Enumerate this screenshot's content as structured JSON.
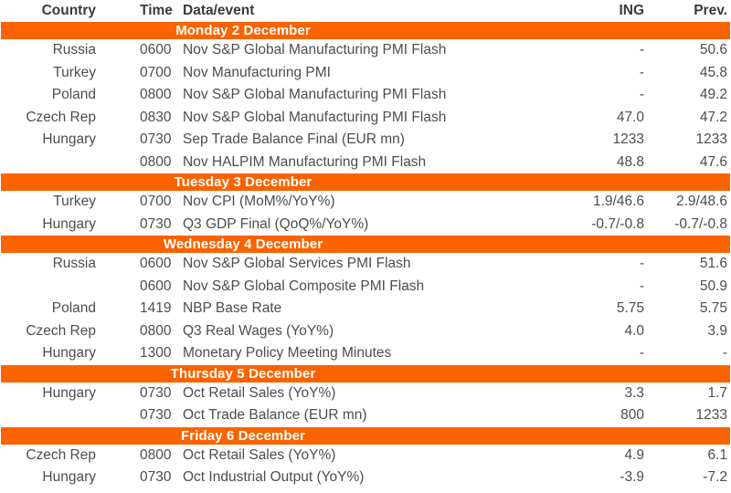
{
  "accent_color": "#fa6300",
  "text_color": "#4d4d50",
  "table": {
    "columns": {
      "country": "Country",
      "time": "Time",
      "event": "Data/event",
      "ing": "ING",
      "prev": "Prev."
    },
    "sections": [
      {
        "title": "Monday 2 December",
        "rows": [
          {
            "country": "Russia",
            "time": "0600",
            "event": "Nov S&P Global Manufacturing PMI Flash",
            "ing": "-",
            "prev": "50.6"
          },
          {
            "country": "Turkey",
            "time": "0700",
            "event": "Nov Manufacturing PMI",
            "ing": "-",
            "prev": "45.8"
          },
          {
            "country": "Poland",
            "time": "0800",
            "event": "Nov S&P Global Manufacturing PMI Flash",
            "ing": "-",
            "prev": "49.2"
          },
          {
            "country": "Czech Rep",
            "time": "0830",
            "event": "Nov S&P Global Manufacturing PMI Flash",
            "ing": "47.0",
            "prev": "47.2"
          },
          {
            "country": "Hungary",
            "time": "0730",
            "event": "Sep Trade Balance Final (EUR mn)",
            "ing": "1233",
            "prev": "1233"
          },
          {
            "country": "",
            "time": "0800",
            "event": "Nov HALPIM Manufacturing PMI Flash",
            "ing": "48.8",
            "prev": "47.6"
          }
        ]
      },
      {
        "title": "Tuesday 3 December",
        "rows": [
          {
            "country": "Turkey",
            "time": "0700",
            "event": "Nov CPI (MoM%/YoY%)",
            "ing": "1.9/46.6",
            "prev": "2.9/48.6"
          },
          {
            "country": "Hungary",
            "time": "0730",
            "event": "Q3 GDP Final (QoQ%/YoY%)",
            "ing": "-0.7/-0.8",
            "prev": "-0.7/-0.8"
          }
        ]
      },
      {
        "title": "Wednesday 4 December",
        "rows": [
          {
            "country": "Russia",
            "time": "0600",
            "event": "Nov S&P Global Services PMI Flash",
            "ing": "-",
            "prev": "51.6"
          },
          {
            "country": "",
            "time": "0600",
            "event": "Nov S&P Global Composite PMI Flash",
            "ing": "-",
            "prev": "50.9"
          },
          {
            "country": "Poland",
            "time": "1419",
            "event": "NBP Base Rate",
            "ing": "5.75",
            "prev": "5.75"
          },
          {
            "country": "Czech Rep",
            "time": "0800",
            "event": "Q3 Real Wages (YoY%)",
            "ing": "4.0",
            "prev": "3.9"
          },
          {
            "country": "Hungary",
            "time": "1300",
            "event": "Monetary Policy Meeting Minutes",
            "ing": "-",
            "prev": "-"
          }
        ]
      },
      {
        "title": "Thursday 5 December",
        "rows": [
          {
            "country": "Hungary",
            "time": "0730",
            "event": "Oct Retail Sales (YoY%)",
            "ing": "3.3",
            "prev": "1.7"
          },
          {
            "country": "",
            "time": "0730",
            "event": "Oct Trade Balance (EUR mn)",
            "ing": "800",
            "prev": "1233"
          }
        ]
      },
      {
        "title": "Friday 6 December",
        "rows": [
          {
            "country": "Czech Rep",
            "time": "0800",
            "event": "Oct Retail Sales (YoY%)",
            "ing": "4.9",
            "prev": "6.1"
          },
          {
            "country": "Hungary",
            "time": "0730",
            "event": "Oct Industrial Output (YoY%)",
            "ing": "-3.9",
            "prev": "-7.2"
          }
        ]
      }
    ]
  }
}
